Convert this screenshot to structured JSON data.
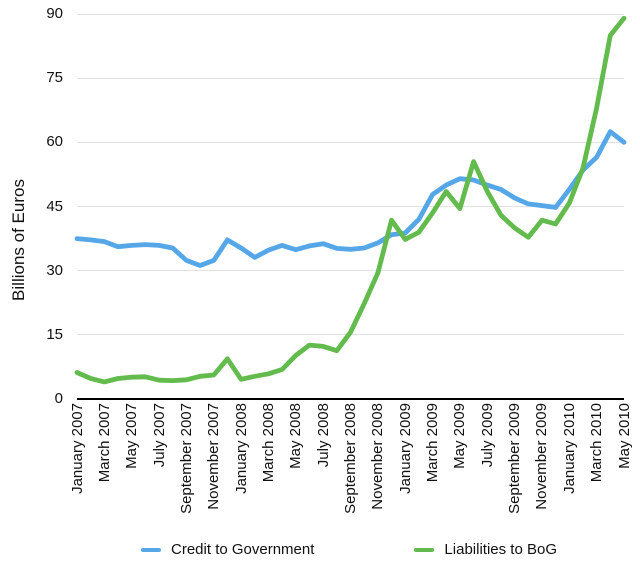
{
  "chart": {
    "background": "#ffffff",
    "gridline_color": "#e1e1e1",
    "axis_color": "#000000",
    "text_color": "#111111"
  },
  "chart_data": {
    "type": "line",
    "title": "",
    "xlabel": "",
    "ylabel": "Billions of Euros",
    "ylim": [
      0,
      90
    ],
    "y_ticks": [
      0,
      15,
      30,
      45,
      60,
      75,
      90
    ],
    "grid": true,
    "legend_position": "bottom",
    "x": [
      "January 2007",
      "February 2007",
      "March 2007",
      "April 2007",
      "May 2007",
      "June 2007",
      "July 2007",
      "August 2007",
      "September 2007",
      "October 2007",
      "November 2007",
      "December 2007",
      "January 2008",
      "February 2008",
      "March 2008",
      "April 2008",
      "May 2008",
      "June 2008",
      "July 2008",
      "August 2008",
      "September 2008",
      "October 2008",
      "November 2008",
      "December 2008",
      "January 2009",
      "February 2009",
      "March 2009",
      "April 2009",
      "May 2009",
      "June 2009",
      "July 2009",
      "August 2009",
      "September 2009",
      "October 2009",
      "November 2009",
      "December 2009",
      "January 2010",
      "February 2010",
      "March 2010",
      "April 2010",
      "May 2010"
    ],
    "x_tick_labels": [
      "January 2007",
      "March 2007",
      "May 2007",
      "July 2007",
      "September 2007",
      "November 2007",
      "January 2008",
      "March 2008",
      "May 2008",
      "July 2008",
      "September 2008",
      "November 2008",
      "January 2009",
      "March 2009",
      "May 2009",
      "July 2009",
      "September 2009",
      "November 2009",
      "January 2010",
      "March 2010",
      "May 2010"
    ],
    "series": [
      {
        "name": "Credit to Government",
        "color": "#55a7e8",
        "values": [
          37.5,
          37.2,
          36.8,
          35.6,
          35.9,
          36.1,
          35.9,
          35.3,
          32.4,
          31.2,
          32.4,
          37.2,
          35.3,
          33.1,
          34.8,
          35.9,
          34.9,
          35.8,
          36.3,
          35.2,
          35.0,
          35.3,
          36.5,
          38.4,
          38.8,
          42.0,
          47.8,
          50.0,
          51.5,
          51.2,
          50.0,
          49.0,
          47.0,
          45.6,
          45.2,
          44.8,
          49.0,
          53.5,
          56.5,
          62.5,
          60.0
        ]
      },
      {
        "name": "Liabilities to BoG",
        "color": "#62bb4c",
        "values": [
          6.2,
          4.8,
          4.0,
          4.8,
          5.1,
          5.2,
          4.4,
          4.3,
          4.5,
          5.3,
          5.6,
          9.4,
          4.6,
          5.3,
          5.9,
          6.9,
          10.2,
          12.6,
          12.3,
          11.3,
          15.6,
          22.3,
          29.5,
          41.8,
          37.3,
          39.0,
          43.5,
          48.5,
          44.5,
          55.5,
          48.5,
          43.0,
          40.0,
          37.8,
          41.8,
          40.9,
          45.8,
          54.0,
          68.0,
          85.0,
          89.0
        ]
      }
    ]
  }
}
